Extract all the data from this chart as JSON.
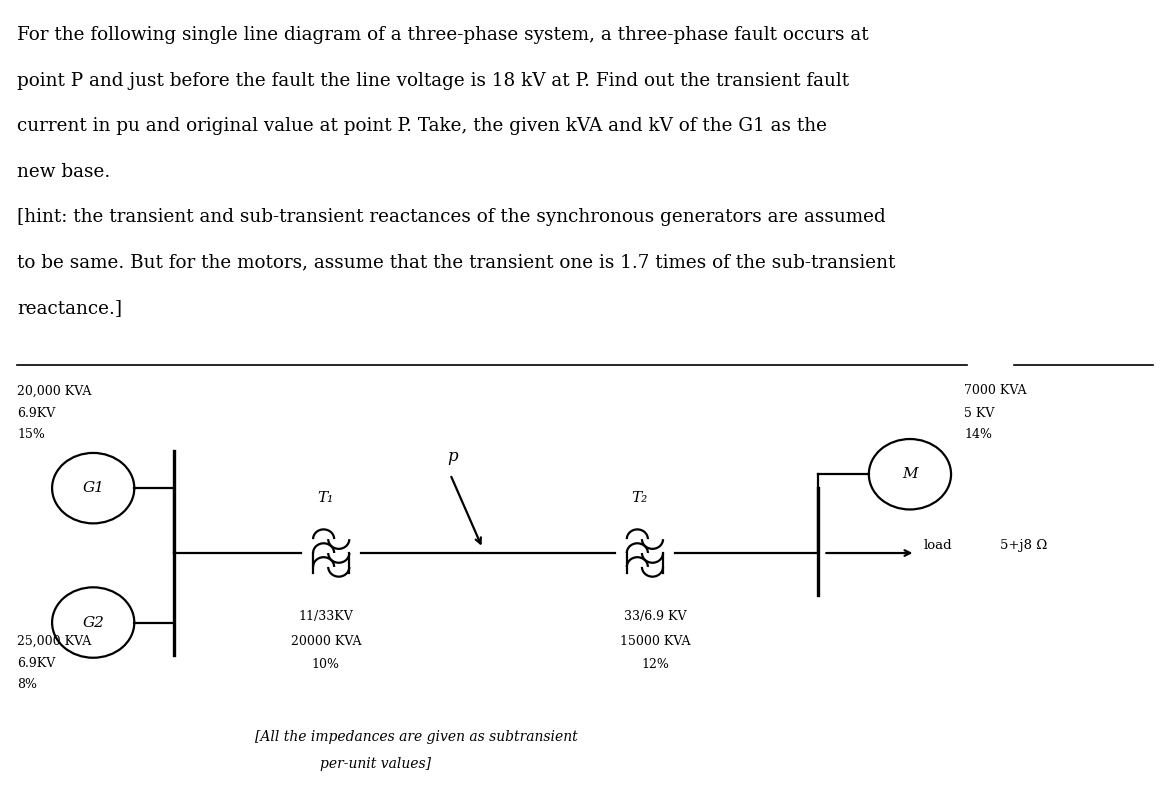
{
  "background_color": "#ffffff",
  "font_color": "#000000",
  "title_lines": [
    "For the following single line diagram of a three-phase system, a three-phase fault occurs at",
    "point P and just before the fault the line voltage is 18 kV at P. Find out the transient fault",
    "current in pu and original value at point P. Take, the given kVA and kV of the G1 as the",
    "new base.",
    "[hint: the transient and sub-transient reactances of the synchronous generators are assumed",
    "to be same. But for the motors, assume that the transient one is 1.7 times of the sub-transient",
    "reactance.]"
  ],
  "G1_label": "G1",
  "G2_label": "G2",
  "M_label": "M",
  "P_label": "p",
  "T1_label": "T₁",
  "T2_label": "T₂",
  "load_label": "load",
  "load_impedance": "5+j8 Ω",
  "G1_spec1": "20,000 KVA",
  "G1_spec2": "6.9KV",
  "G1_spec3": "15%",
  "G2_spec1": "25,000 KVA",
  "G2_spec2": "6.9KV",
  "G2_spec3": "8%",
  "M_spec1": "7000 KVA",
  "M_spec2": "5 KV",
  "M_spec3": "14%",
  "T1_spec1": "11/33KV",
  "T1_spec2": "20000 KVA",
  "T1_spec3": "10%",
  "T2_spec1": "33/6.9 KV",
  "T2_spec2": "15000 KVA",
  "T2_spec3": "12%",
  "note_line1": "[All the impedances are given as subtransient",
  "note_line2": "per-unit values]"
}
